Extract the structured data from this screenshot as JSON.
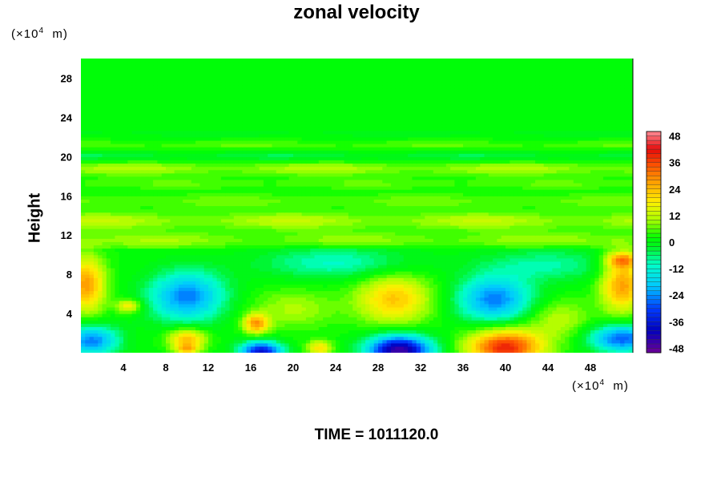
{
  "chart_data": {
    "type": "heatmap",
    "title": "zonal velocity",
    "ylabel": "Height",
    "x_unit": "m",
    "x_scale_base": "10",
    "x_scale_exp": "4",
    "y_unit": "m",
    "y_scale_base": "10",
    "y_scale_exp": "4",
    "footer": "TIME = 1011120.0",
    "xlim": [
      0,
      52
    ],
    "ylim": [
      0,
      30
    ],
    "x_ticks": [
      4,
      8,
      12,
      16,
      20,
      24,
      28,
      32,
      36,
      40,
      44,
      48
    ],
    "y_ticks": [
      4,
      8,
      12,
      16,
      20,
      24,
      28
    ],
    "colorbar": {
      "range": [
        -50,
        50
      ],
      "levels": 50,
      "tick_values": [
        48,
        36,
        24,
        12,
        0,
        -12,
        -24,
        -36,
        -48
      ],
      "tick_labels": [
        "48",
        "36",
        "24",
        "12",
        "0",
        "-12",
        "-24",
        "-36",
        "-48"
      ]
    },
    "features": [
      {
        "x": 30,
        "y": 0.3,
        "value": -48,
        "sx": 3.0,
        "sy": 1.5
      },
      {
        "x": 17,
        "y": 0.2,
        "value": -38,
        "sx": 2.0,
        "sy": 1.0
      },
      {
        "x": 40,
        "y": 0.6,
        "value": 38,
        "sx": 3.5,
        "sy": 1.8
      },
      {
        "x": 51,
        "y": 1.5,
        "value": -30,
        "sx": 3.0,
        "sy": 1.4
      },
      {
        "x": 1,
        "y": 1.3,
        "value": -27,
        "sx": 2.5,
        "sy": 1.5
      },
      {
        "x": 10,
        "y": 1.5,
        "value": 22,
        "sx": 1.8,
        "sy": 1.0
      },
      {
        "x": 10,
        "y": 0.4,
        "value": 18,
        "sx": 1.2,
        "sy": 0.6
      },
      {
        "x": 16.5,
        "y": 3.0,
        "value": 25,
        "sx": 1.2,
        "sy": 1.0
      },
      {
        "x": 22.5,
        "y": 0.5,
        "value": 18,
        "sx": 1.2,
        "sy": 0.8
      },
      {
        "x": 10,
        "y": 5.8,
        "value": -27,
        "sx": 3.5,
        "sy": 2.5
      },
      {
        "x": 39,
        "y": 5.5,
        "value": -27,
        "sx": 3.5,
        "sy": 2.3
      },
      {
        "x": 29.5,
        "y": 5.5,
        "value": 21,
        "sx": 3.5,
        "sy": 2.5
      },
      {
        "x": 0.5,
        "y": 7.0,
        "value": 26,
        "sx": 1.8,
        "sy": 2.8
      },
      {
        "x": 51,
        "y": 7.0,
        "value": 26,
        "sx": 2.0,
        "sy": 2.8
      },
      {
        "x": 51,
        "y": 9.5,
        "value": 22,
        "sx": 1.5,
        "sy": 0.8
      },
      {
        "x": 4.5,
        "y": 4.8,
        "value": 17,
        "sx": 1.2,
        "sy": 0.7
      },
      {
        "x": 24,
        "y": 9.2,
        "value": -12,
        "sx": 7.0,
        "sy": 1.6
      },
      {
        "x": 44,
        "y": 9.0,
        "value": -10,
        "sx": 6.0,
        "sy": 1.6
      },
      {
        "x": 20,
        "y": 4.5,
        "value": 9,
        "sx": 4.0,
        "sy": 2.0
      },
      {
        "x": 45,
        "y": 3.5,
        "value": 10,
        "sx": 3.0,
        "sy": 2.0
      }
    ],
    "bands": [
      {
        "y": 11.5,
        "value": 9,
        "width": 0.9
      },
      {
        "y": 13.5,
        "value": 11,
        "width": 0.9
      },
      {
        "y": 15.5,
        "value": 6,
        "width": 0.8
      },
      {
        "y": 17.3,
        "value": 5,
        "width": 0.6
      },
      {
        "y": 18.8,
        "value": 10,
        "width": 0.7
      },
      {
        "y": 20.1,
        "value": -6,
        "width": 0.5
      },
      {
        "y": 21.2,
        "value": 5,
        "width": 0.5
      },
      {
        "y": 22.4,
        "value": -3,
        "width": 0.4
      }
    ]
  }
}
